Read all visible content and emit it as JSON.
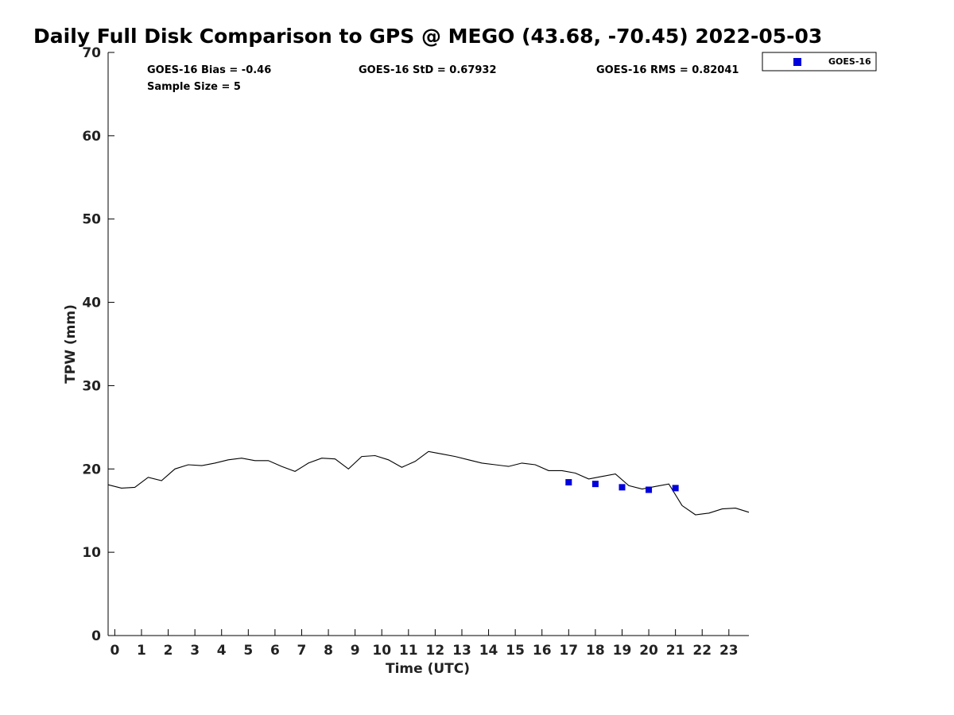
{
  "chart_data": {
    "type": "line",
    "title": "Daily Full Disk Comparison to GPS @ MEGO (43.68, -70.45) 2022-05-03",
    "xlabel": "Time (UTC)",
    "ylabel": "TPW (mm)",
    "xlim": [
      -0.25,
      23.75
    ],
    "ylim": [
      0,
      70
    ],
    "xticks": [
      "0",
      "1",
      "2",
      "3",
      "4",
      "5",
      "6",
      "7",
      "8",
      "9",
      "10",
      "11",
      "12",
      "13",
      "14",
      "15",
      "16",
      "17",
      "18",
      "19",
      "20",
      "21",
      "22",
      "23"
    ],
    "yticks": [
      "0",
      "10",
      "20",
      "30",
      "40",
      "50",
      "60",
      "70"
    ],
    "grid": false,
    "legend_position": "top-right, outside plot",
    "stats": {
      "bias": "GOES-16 Bias = -0.46",
      "std": "GOES-16 StD = 0.67932",
      "rms": "GOES-16 RMS = 0.82041",
      "sample": "Sample Size = 5"
    },
    "series": [
      {
        "type": "line",
        "color": "#000000",
        "x": [
          -0.25,
          0.25,
          0.75,
          1.25,
          1.75,
          2.25,
          2.75,
          3.25,
          3.75,
          4.25,
          4.75,
          5.25,
          5.75,
          6.25,
          6.75,
          7.25,
          7.75,
          8.25,
          8.75,
          9.25,
          9.75,
          10.25,
          10.75,
          11.25,
          11.75,
          12.25,
          12.75,
          13.25,
          13.75,
          14.25,
          14.75,
          15.25,
          15.75,
          16.25,
          16.75,
          17.25,
          17.75,
          18.25,
          18.75,
          19.25,
          19.75,
          20.25,
          20.75,
          21.25,
          21.75,
          22.25,
          22.75,
          23.25,
          23.75
        ],
        "y": [
          18.1,
          17.7,
          17.8,
          19.0,
          18.6,
          20.0,
          20.5,
          20.4,
          20.7,
          21.1,
          21.3,
          21.0,
          21.0,
          20.3,
          19.7,
          20.7,
          21.3,
          21.2,
          20.0,
          21.5,
          21.6,
          21.1,
          20.2,
          20.9,
          22.1,
          21.8,
          21.5,
          21.1,
          20.7,
          20.5,
          20.3,
          20.7,
          20.5,
          19.8,
          19.8,
          19.5,
          18.8,
          19.1,
          19.4,
          18.0,
          17.6,
          17.9,
          18.2,
          15.6,
          14.5,
          14.7,
          15.2,
          15.3,
          14.8
        ]
      },
      {
        "name": "GOES-16",
        "type": "scatter",
        "color": "#0000dd",
        "x": [
          17,
          18,
          19,
          20,
          21
        ],
        "y": [
          18.4,
          18.2,
          17.8,
          17.5,
          17.7
        ]
      }
    ]
  }
}
